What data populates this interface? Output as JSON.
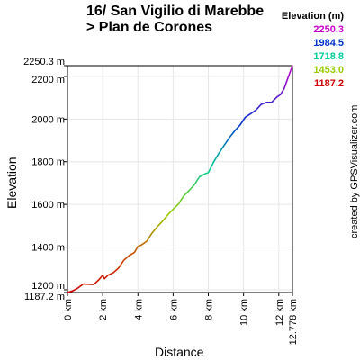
{
  "title": {
    "line1": "16/ San Vigilio di Marebbe",
    "line2": "> Plan de Corones"
  },
  "legend": {
    "title": "Elevation (m)",
    "items": [
      {
        "label": "2250.3",
        "color": "#cc00cc"
      },
      {
        "label": "1984.5",
        "color": "#0033cc"
      },
      {
        "label": "1718.8",
        "color": "#00cc99"
      },
      {
        "label": "1453.0",
        "color": "#99cc00"
      },
      {
        "label": "1187.2",
        "color": "#cc0000"
      }
    ]
  },
  "watermark": "created by GPSVisualizer.com",
  "chart_data": {
    "type": "area",
    "xlabel": "Distance",
    "ylabel": "Elevation",
    "xlim": [
      0,
      12.778
    ],
    "ylim": [
      1187.2,
      2250.3
    ],
    "x_ticks": [
      {
        "value": 0,
        "label": "0 km"
      },
      {
        "value": 2,
        "label": "2 km"
      },
      {
        "value": 4,
        "label": "4 km"
      },
      {
        "value": 6,
        "label": "6 km"
      },
      {
        "value": 8,
        "label": "8 km"
      },
      {
        "value": 10,
        "label": "10 km"
      },
      {
        "value": 12,
        "label": "12 km"
      },
      {
        "value": 12.778,
        "label": "12.778 km"
      }
    ],
    "y_ticks": [
      {
        "value": 1187.2,
        "label": "1187.2 m"
      },
      {
        "value": 1200,
        "label": "1200 m"
      },
      {
        "value": 1400,
        "label": "1400 m"
      },
      {
        "value": 1600,
        "label": "1600 m"
      },
      {
        "value": 1800,
        "label": "1800 m"
      },
      {
        "value": 2000,
        "label": "2000 m"
      },
      {
        "value": 2200,
        "label": "2200 m"
      },
      {
        "value": 2250.3,
        "label": "2250.3 m"
      }
    ],
    "series": [
      {
        "x": [
          0,
          0.3,
          0.6,
          0.9,
          1.2,
          1.5,
          1.8,
          2.0,
          2.1,
          2.3,
          2.6,
          2.9,
          3.2,
          3.5,
          3.8,
          4.0,
          4.2,
          4.5,
          4.8,
          5.1,
          5.4,
          5.7,
          6.0,
          6.3,
          6.6,
          6.9,
          7.2,
          7.5,
          7.8,
          8.0,
          8.3,
          8.6,
          8.9,
          9.2,
          9.5,
          9.8,
          10.1,
          10.4,
          10.7,
          11.0,
          11.3,
          11.6,
          11.9,
          12.1,
          12.3,
          12.5,
          12.778
        ],
        "y": [
          1187.2,
          1195,
          1212,
          1224,
          1226,
          1228,
          1245,
          1268,
          1255,
          1265,
          1280,
          1305,
          1335,
          1360,
          1378,
          1400,
          1410,
          1430,
          1462,
          1495,
          1525,
          1548,
          1577,
          1605,
          1636,
          1664,
          1695,
          1726,
          1743,
          1752,
          1795,
          1840,
          1880,
          1910,
          1945,
          1975,
          2005,
          2025,
          2045,
          2065,
          2078,
          2082,
          2100,
          2115,
          2145,
          2185,
          2250.3
        ]
      }
    ],
    "grid": true,
    "line_color_gradient": [
      "#cc0000",
      "#cc0000",
      "#99cc00",
      "#00cc99",
      "#0033cc",
      "#cc00cc"
    ]
  }
}
